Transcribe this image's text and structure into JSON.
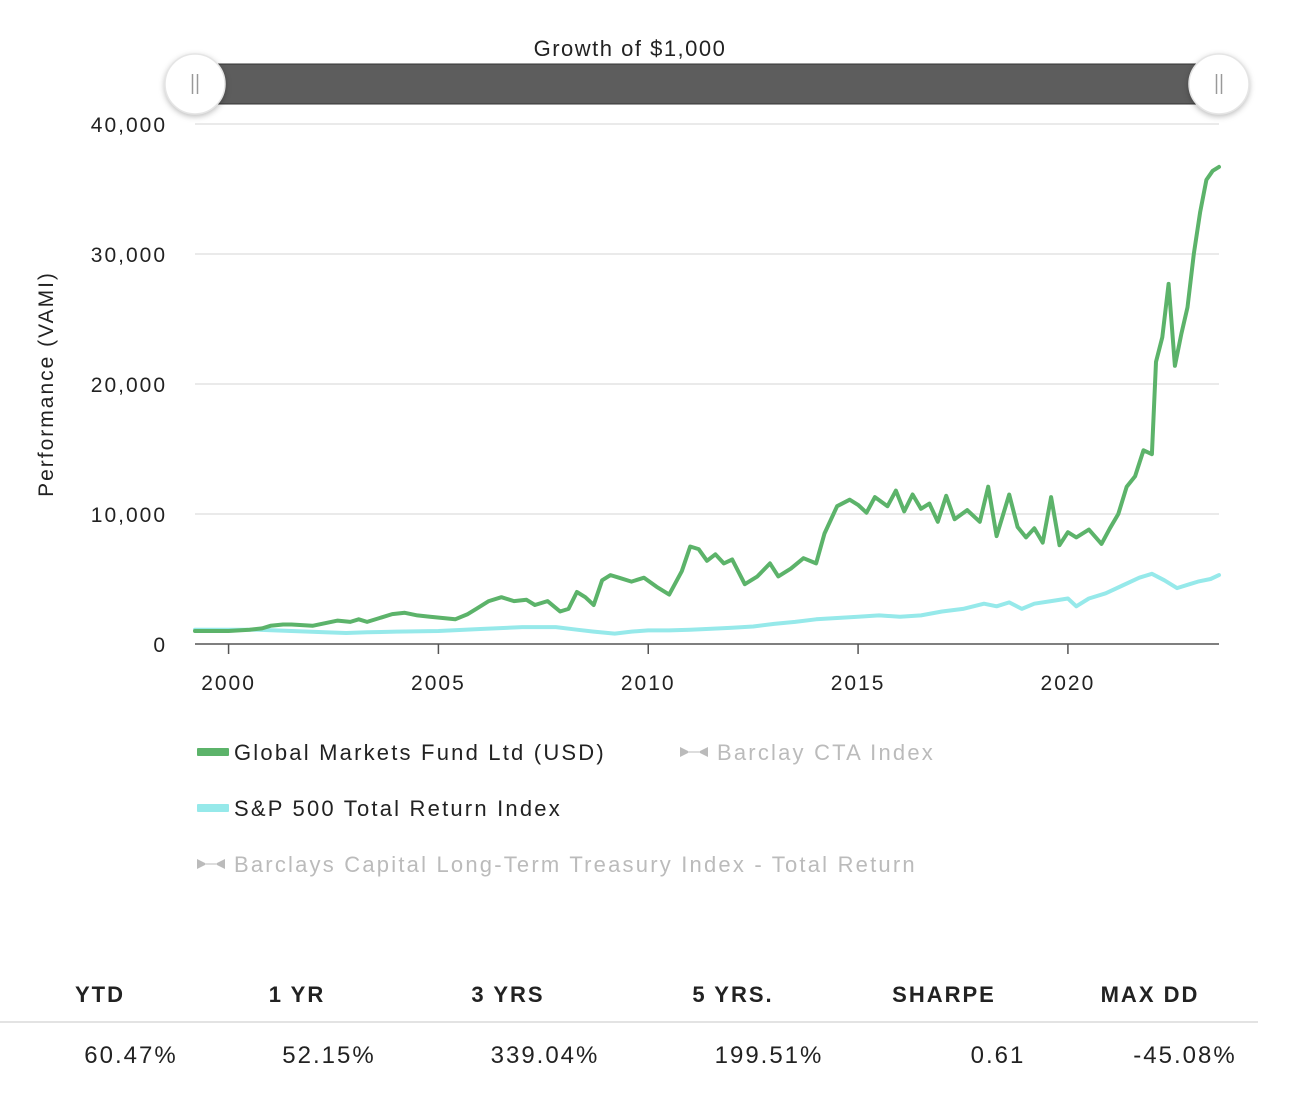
{
  "chart_data": {
    "type": "line",
    "title": "Growth of $1,000",
    "ylabel": "Performance (VAMI)",
    "xlabel": "",
    "ylim": [
      0,
      40000
    ],
    "xlim": [
      1999.2,
      2023.6
    ],
    "y_ticks": [
      {
        "value": 0,
        "label": "0"
      },
      {
        "value": 10000,
        "label": "10,000"
      },
      {
        "value": 20000,
        "label": "20,000"
      },
      {
        "value": 30000,
        "label": "30,000"
      },
      {
        "value": 40000,
        "label": "40,000"
      }
    ],
    "x_ticks": [
      {
        "value": 2000,
        "label": "2000"
      },
      {
        "value": 2005,
        "label": "2005"
      },
      {
        "value": 2010,
        "label": "2010"
      },
      {
        "value": 2015,
        "label": "2015"
      },
      {
        "value": 2020,
        "label": "2020"
      }
    ],
    "grid": "horizontal",
    "legend_placement": "bottom",
    "series": [
      {
        "name": "Global Markets Fund Ltd (USD)",
        "color": "#5cb36a",
        "visible": true,
        "x": [
          1999.2,
          2000.0,
          2000.5,
          2000.8,
          2001.0,
          2001.3,
          2001.5,
          2002.0,
          2002.3,
          2002.6,
          2002.9,
          2003.1,
          2003.3,
          2003.6,
          2003.9,
          2004.2,
          2004.5,
          2004.8,
          2005.1,
          2005.4,
          2005.7,
          2005.9,
          2006.2,
          2006.5,
          2006.8,
          2007.1,
          2007.3,
          2007.6,
          2007.9,
          2008.1,
          2008.3,
          2008.5,
          2008.7,
          2008.9,
          2009.1,
          2009.3,
          2009.6,
          2009.9,
          2010.2,
          2010.5,
          2010.8,
          2011.0,
          2011.2,
          2011.4,
          2011.6,
          2011.8,
          2012.0,
          2012.3,
          2012.6,
          2012.9,
          2013.1,
          2013.4,
          2013.7,
          2014.0,
          2014.2,
          2014.5,
          2014.8,
          2015.0,
          2015.2,
          2015.4,
          2015.7,
          2015.9,
          2016.1,
          2016.3,
          2016.5,
          2016.7,
          2016.9,
          2017.1,
          2017.3,
          2017.6,
          2017.9,
          2018.1,
          2018.3,
          2018.6,
          2018.8,
          2019.0,
          2019.2,
          2019.4,
          2019.6,
          2019.8,
          2020.0,
          2020.2,
          2020.5,
          2020.8,
          2021.0,
          2021.2,
          2021.4,
          2021.6,
          2021.8,
          2022.0,
          2022.1,
          2022.25,
          2022.4,
          2022.55,
          2022.7,
          2022.85,
          2023.0,
          2023.15,
          2023.3,
          2023.45,
          2023.6
        ],
        "values": [
          1000,
          1000,
          1100,
          1200,
          1400,
          1500,
          1500,
          1400,
          1600,
          1800,
          1700,
          1900,
          1700,
          2000,
          2300,
          2400,
          2200,
          2100,
          2000,
          1900,
          2300,
          2700,
          3300,
          3600,
          3300,
          3400,
          3000,
          3300,
          2500,
          2700,
          4000,
          3600,
          3000,
          4900,
          5300,
          5100,
          4800,
          5100,
          4400,
          3800,
          5600,
          7500,
          7300,
          6400,
          6900,
          6200,
          6500,
          4600,
          5200,
          6200,
          5200,
          5800,
          6600,
          6200,
          8500,
          10600,
          11100,
          10700,
          10100,
          11300,
          10600,
          11800,
          10200,
          11500,
          10400,
          10800,
          9400,
          11400,
          9600,
          10300,
          9400,
          12100,
          8300,
          11500,
          9000,
          8200,
          8900,
          7800,
          11300,
          7600,
          8600,
          8200,
          8800,
          7700,
          8900,
          10000,
          12100,
          12900,
          14900,
          14600,
          21700,
          23600,
          27700,
          21400,
          23800,
          25900,
          30000,
          33200,
          35700,
          36400,
          36700
        ]
      },
      {
        "name": "Barclay CTA Index",
        "color": "#bbbbbb",
        "visible": false,
        "x": [],
        "values": []
      },
      {
        "name": "S&P 500 Total Return Index",
        "color": "#96e9ea",
        "visible": true,
        "x": [
          1999.2,
          2000.0,
          2000.7,
          2001.5,
          2002.3,
          2002.8,
          2003.3,
          2004.0,
          2005.0,
          2006.0,
          2007.0,
          2007.8,
          2008.3,
          2008.7,
          2009.2,
          2009.6,
          2010.0,
          2010.5,
          2011.0,
          2011.7,
          2012.0,
          2012.5,
          2013.0,
          2013.5,
          2014.0,
          2014.5,
          2015.0,
          2015.5,
          2016.0,
          2016.5,
          2017.0,
          2017.5,
          2018.0,
          2018.3,
          2018.6,
          2018.9,
          2019.2,
          2019.6,
          2020.0,
          2020.2,
          2020.5,
          2020.9,
          2021.3,
          2021.7,
          2022.0,
          2022.3,
          2022.6,
          2022.9,
          2023.1,
          2023.4,
          2023.6
        ],
        "values": [
          1100,
          1100,
          1100,
          1000,
          900,
          850,
          900,
          950,
          1000,
          1150,
          1300,
          1300,
          1100,
          950,
          800,
          950,
          1050,
          1050,
          1100,
          1200,
          1250,
          1350,
          1550,
          1700,
          1900,
          2000,
          2100,
          2200,
          2100,
          2200,
          2500,
          2700,
          3100,
          2900,
          3200,
          2700,
          3100,
          3300,
          3500,
          2900,
          3500,
          3900,
          4500,
          5100,
          5400,
          4900,
          4300,
          4600,
          4800,
          5000,
          5300
        ]
      },
      {
        "name": "Barclays Capital Long-Term Treasury Index - Total Return",
        "color": "#bbbbbb",
        "visible": false,
        "x": [],
        "values": []
      }
    ]
  },
  "stats": {
    "headers": [
      "YTD",
      "1 YR",
      "3 YRS",
      "5 YRS.",
      "SHARPE",
      "MAX DD"
    ],
    "values": [
      "60.47%",
      "52.15%",
      "339.04%",
      "199.51%",
      "0.61",
      "-45.08%"
    ]
  }
}
